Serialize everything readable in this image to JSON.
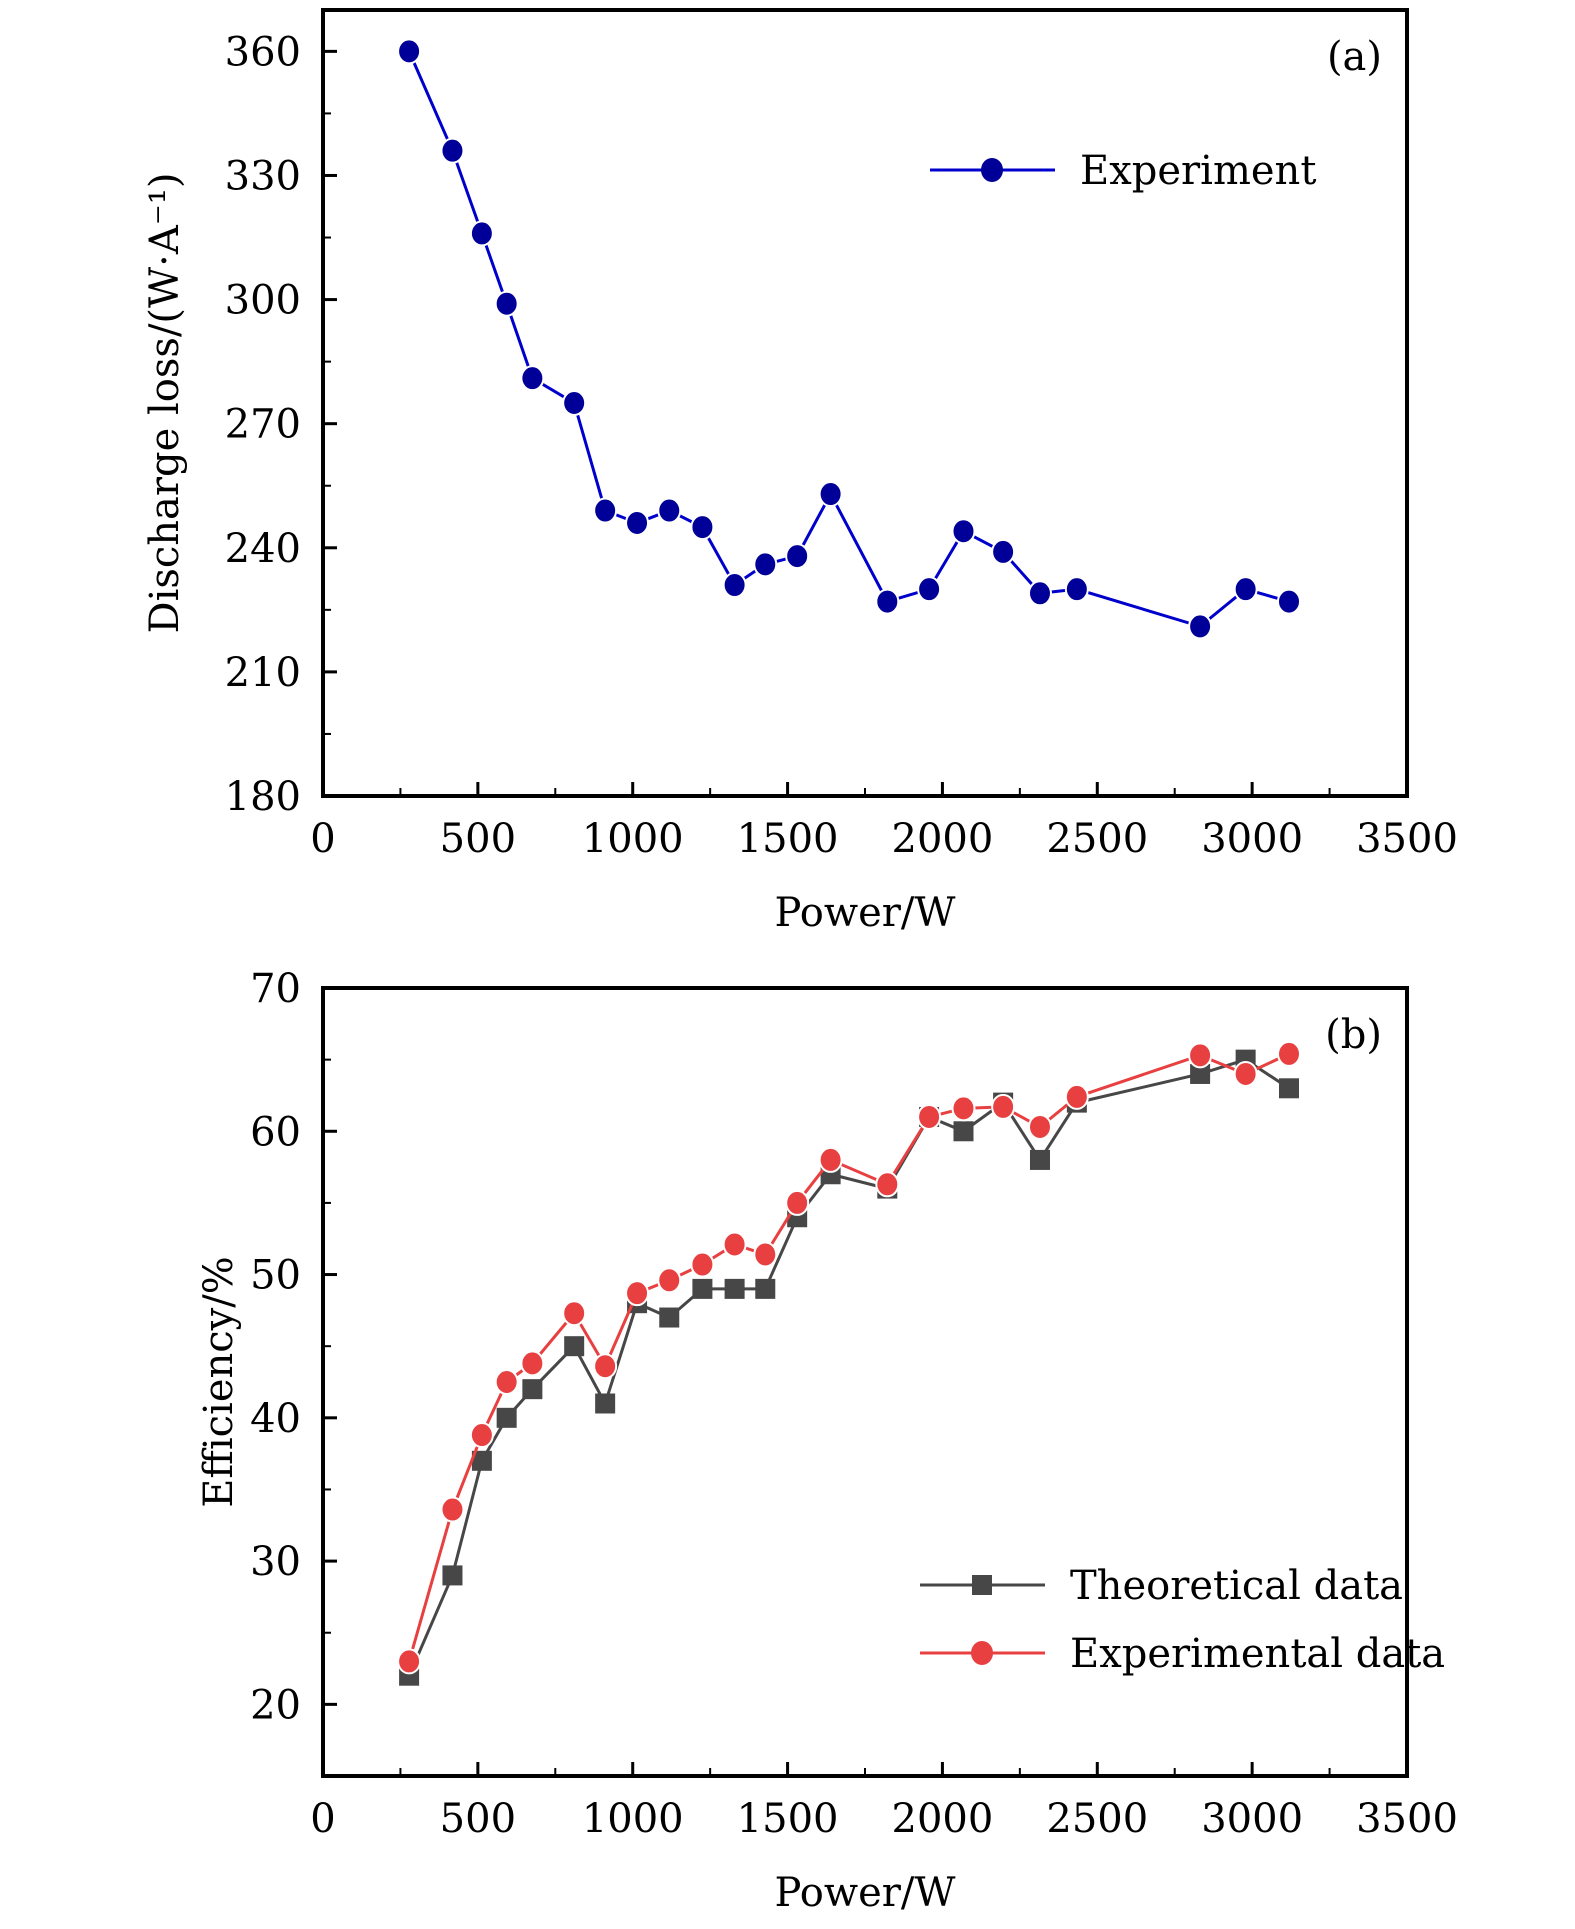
{
  "chart_data": [
    {
      "type": "line",
      "panel_label": "(a)",
      "xlabel": "Power/W",
      "ylabel": "Discharge loss/(W·A⁻¹)",
      "xlim": [
        0,
        3500
      ],
      "ylim": [
        180,
        370
      ],
      "xticks": [
        0,
        500,
        1000,
        1500,
        2000,
        2500,
        3000,
        3500
      ],
      "yticks": [
        180,
        210,
        240,
        270,
        300,
        330,
        360
      ],
      "grid": false,
      "legend_position": "top-center",
      "x": [
        278,
        418,
        513,
        593,
        676,
        811,
        911,
        1014,
        1118,
        1225,
        1329,
        1428,
        1531,
        1639,
        1822,
        1957,
        2068,
        2196,
        2315,
        2434,
        2832,
        2979,
        3119
      ],
      "series": [
        {
          "name": "Experiment",
          "color": "#0000cc",
          "marker_color": "#000099",
          "marker": "circle",
          "values": [
            360,
            336,
            316,
            299,
            281,
            275,
            249,
            246,
            249,
            245,
            231,
            236,
            238,
            253,
            227,
            230,
            244,
            239,
            229,
            230,
            221,
            230,
            227
          ]
        }
      ]
    },
    {
      "type": "line",
      "panel_label": "(b)",
      "xlabel": "Power/W",
      "ylabel": "Efficiency/%",
      "xlim": [
        0,
        3500
      ],
      "ylim": [
        15,
        70
      ],
      "xticks": [
        0,
        500,
        1000,
        1500,
        2000,
        2500,
        3000,
        3500
      ],
      "yticks": [
        20,
        30,
        40,
        50,
        60,
        70
      ],
      "grid": false,
      "legend_position": "bottom-right",
      "x": [
        278,
        418,
        513,
        593,
        676,
        811,
        911,
        1014,
        1118,
        1225,
        1329,
        1428,
        1531,
        1639,
        1822,
        1957,
        2068,
        2196,
        2315,
        2434,
        2832,
        2979,
        3119
      ],
      "series": [
        {
          "name": "Theoretical data",
          "color": "#474747",
          "marker_color": "#474747",
          "marker": "square",
          "values": [
            22,
            29,
            37,
            40,
            42,
            45,
            41,
            48,
            47,
            49,
            49,
            49,
            54,
            57,
            56,
            61,
            60,
            62,
            58,
            62,
            64,
            65,
            63
          ]
        },
        {
          "name": "Experimental data",
          "color": "#e84040",
          "marker_color": "#e84040",
          "marker": "circle",
          "values": [
            23.0,
            33.6,
            38.8,
            42.5,
            43.8,
            47.3,
            43.6,
            48.7,
            49.6,
            50.7,
            52.1,
            51.4,
            55.0,
            58.0,
            56.3,
            61.0,
            61.6,
            61.7,
            60.3,
            62.4,
            65.3,
            64.0,
            65.4
          ]
        }
      ]
    }
  ]
}
